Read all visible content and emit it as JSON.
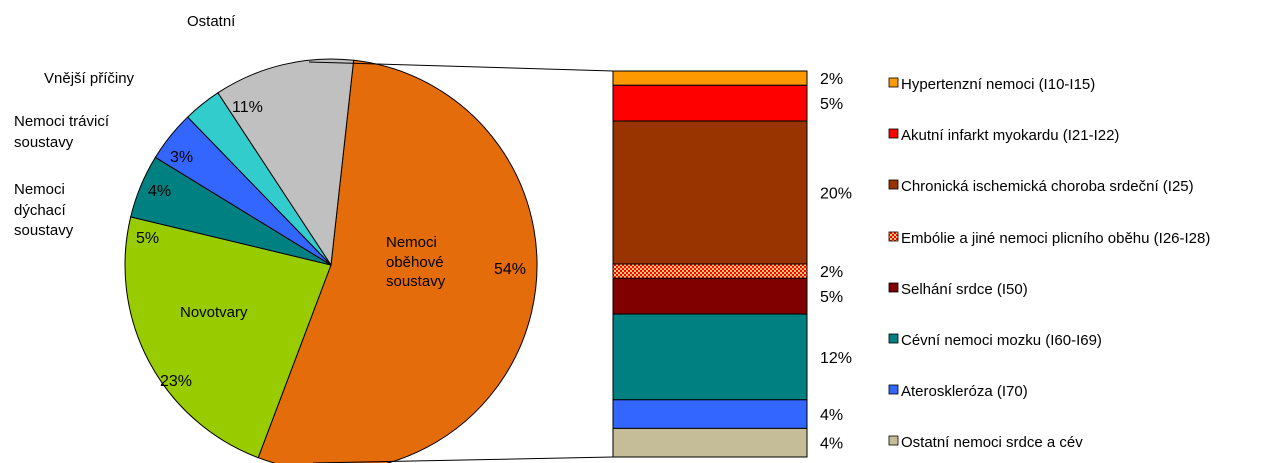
{
  "chart_data": [
    {
      "type": "pie",
      "title": "",
      "slices": [
        {
          "label": "Nemoci oběhové soustavy",
          "value": 54,
          "text": "54%",
          "color": "#E46C0A"
        },
        {
          "label": "Novotvary",
          "value": 23,
          "text": "23%",
          "color": "#99CC00"
        },
        {
          "label": "Nemoci dýchací soustavy",
          "value": 5,
          "text": "5%",
          "color": "#008080"
        },
        {
          "label": "Nemoci trávicí soustavy",
          "value": 4,
          "text": "4%",
          "color": "#3366FF"
        },
        {
          "label": "Vnější příčiny",
          "value": 3,
          "text": "3%",
          "color": "#33CCCC"
        },
        {
          "label": "Ostatní",
          "value": 11,
          "text": "11%",
          "color": "#C0C0C0"
        }
      ],
      "outside_labels": {
        "ostatni": "Ostatní",
        "vnejsi": "Vnější příčiny",
        "traveni_1": "Nemoci trávicí",
        "traveni_2": "soustavy",
        "dychaci_1": "Nemoci",
        "dychaci_2": "dýchací",
        "dychaci_3": "soustavy"
      },
      "inside_labels": {
        "obehove_1": "Nemoci",
        "obehove_2": "oběhové",
        "obehove_3": "soustavy",
        "novotvary": "Novotvary"
      }
    },
    {
      "type": "bar",
      "stacked": true,
      "title": "",
      "segments": [
        {
          "label": "Hypertenzní nemoci (I10-I15)",
          "value": 2,
          "text": "2%",
          "color": "#FF9900"
        },
        {
          "label": "Akutní infarkt myokardu (I21-I22)",
          "value": 5,
          "text": "5%",
          "color": "#FF0000"
        },
        {
          "label": "Chronická ischemická choroba srdeční (I25)",
          "value": 20,
          "text": "20%",
          "color": "#993300"
        },
        {
          "label": "Embólie a jiné nemoci plicního oběhu (I26-I28)",
          "value": 2,
          "text": "2%",
          "color": "#FF6600",
          "pattern": "checker"
        },
        {
          "label": "Selhání srdce (I50)",
          "value": 5,
          "text": "5%",
          "color": "#800000"
        },
        {
          "label": "Cévní nemoci mozku (I60-I69)",
          "value": 12,
          "text": "12%",
          "color": "#008080"
        },
        {
          "label": "Ateroskleróza (I70)",
          "value": 4,
          "text": "4%",
          "color": "#3366FF"
        },
        {
          "label": "Ostatní nemoci srdce a cév",
          "value": 4,
          "text": "4%",
          "color": "#C4BD97"
        }
      ]
    }
  ]
}
